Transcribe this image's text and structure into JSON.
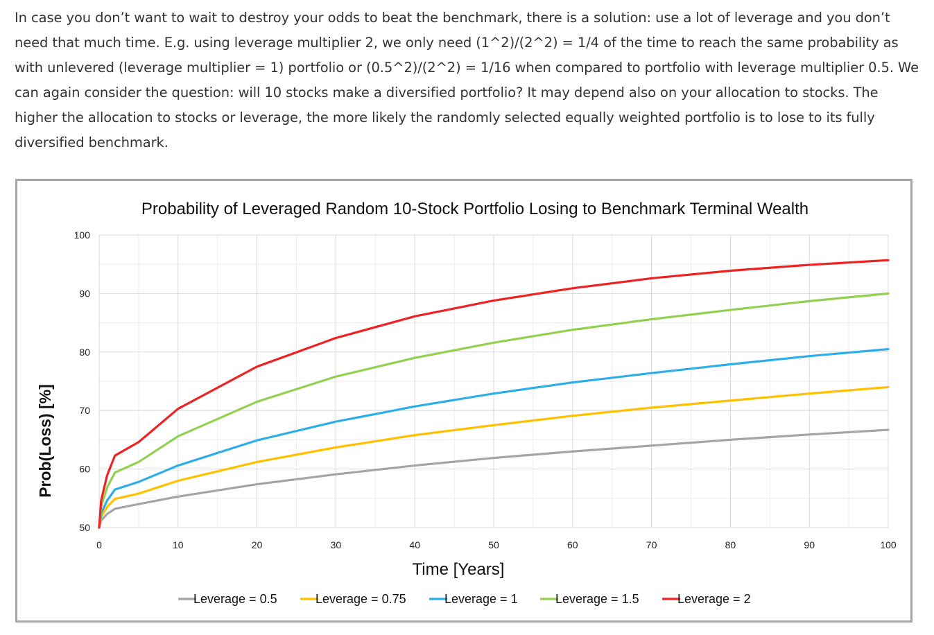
{
  "article": {
    "paragraph": "In case you don’t want to wait to destroy your odds to beat the benchmark, there is a solution: use a lot of leverage and you don’t need that much time. E.g. using leverage multiplier 2, we only need (1^2)/(2^2) = 1/4 of the time to reach the same probability as with unlevered (leverage multiplier = 1) portfolio or (0.5^2)/(2^2) = 1/16 when compared to portfolio with leverage multiplier 0.5. We can again consider the question: will 10 stocks make a diversified portfolio? It may depend also on your allocation to stocks. The higher the allocation to stocks or leverage, the more likely the randomly selected equally weighted portfolio is to lose to its fully diversified benchmark."
  },
  "chart_data": {
    "type": "line",
    "title": "Probability of Leveraged Random 10-Stock Portfolio Losing to Benchmark Terminal Wealth",
    "xlabel": "Time [Years]",
    "ylabel": "Prob(Loss) [%]",
    "xlim": [
      0,
      100
    ],
    "ylim": [
      50,
      100
    ],
    "x_ticks": [
      "0",
      "10",
      "20",
      "30",
      "40",
      "50",
      "60",
      "70",
      "80",
      "90",
      "100"
    ],
    "y_ticks": [
      "50",
      "60",
      "70",
      "80",
      "90",
      "100"
    ],
    "grid": true,
    "legend_position": "bottom",
    "x": [
      0,
      0.25,
      1,
      2,
      5,
      10,
      20,
      30,
      40,
      50,
      60,
      70,
      80,
      90,
      100
    ],
    "series": [
      {
        "name": "Leverage = 0.5",
        "color": "#a5a5a5",
        "values": [
          50,
          51.2,
          52.3,
          53.2,
          54.0,
          55.3,
          57.4,
          59.1,
          60.6,
          61.9,
          63.0,
          64.0,
          65.0,
          65.9,
          66.7
        ]
      },
      {
        "name": "Leverage = 0.75",
        "color": "#ffc000",
        "values": [
          50,
          51.8,
          53.5,
          54.9,
          55.8,
          58.0,
          61.2,
          63.7,
          65.8,
          67.5,
          69.1,
          70.5,
          71.7,
          72.9,
          74.0
        ]
      },
      {
        "name": "Leverage = 1",
        "color": "#2eaee8",
        "values": [
          50,
          52.4,
          54.6,
          56.5,
          57.8,
          60.6,
          64.9,
          68.1,
          70.7,
          72.9,
          74.8,
          76.4,
          77.9,
          79.3,
          80.5
        ]
      },
      {
        "name": "Leverage = 1.5",
        "color": "#92d050",
        "values": [
          50,
          53.5,
          56.8,
          59.4,
          61.2,
          65.6,
          71.5,
          75.8,
          79.0,
          81.6,
          83.8,
          85.6,
          87.2,
          88.7,
          90.0
        ]
      },
      {
        "name": "Leverage = 2",
        "color": "#ee2222",
        "values": [
          50,
          54.6,
          58.9,
          62.3,
          64.6,
          70.3,
          77.5,
          82.4,
          86.1,
          88.8,
          90.9,
          92.6,
          93.9,
          94.9,
          95.7
        ]
      }
    ]
  }
}
